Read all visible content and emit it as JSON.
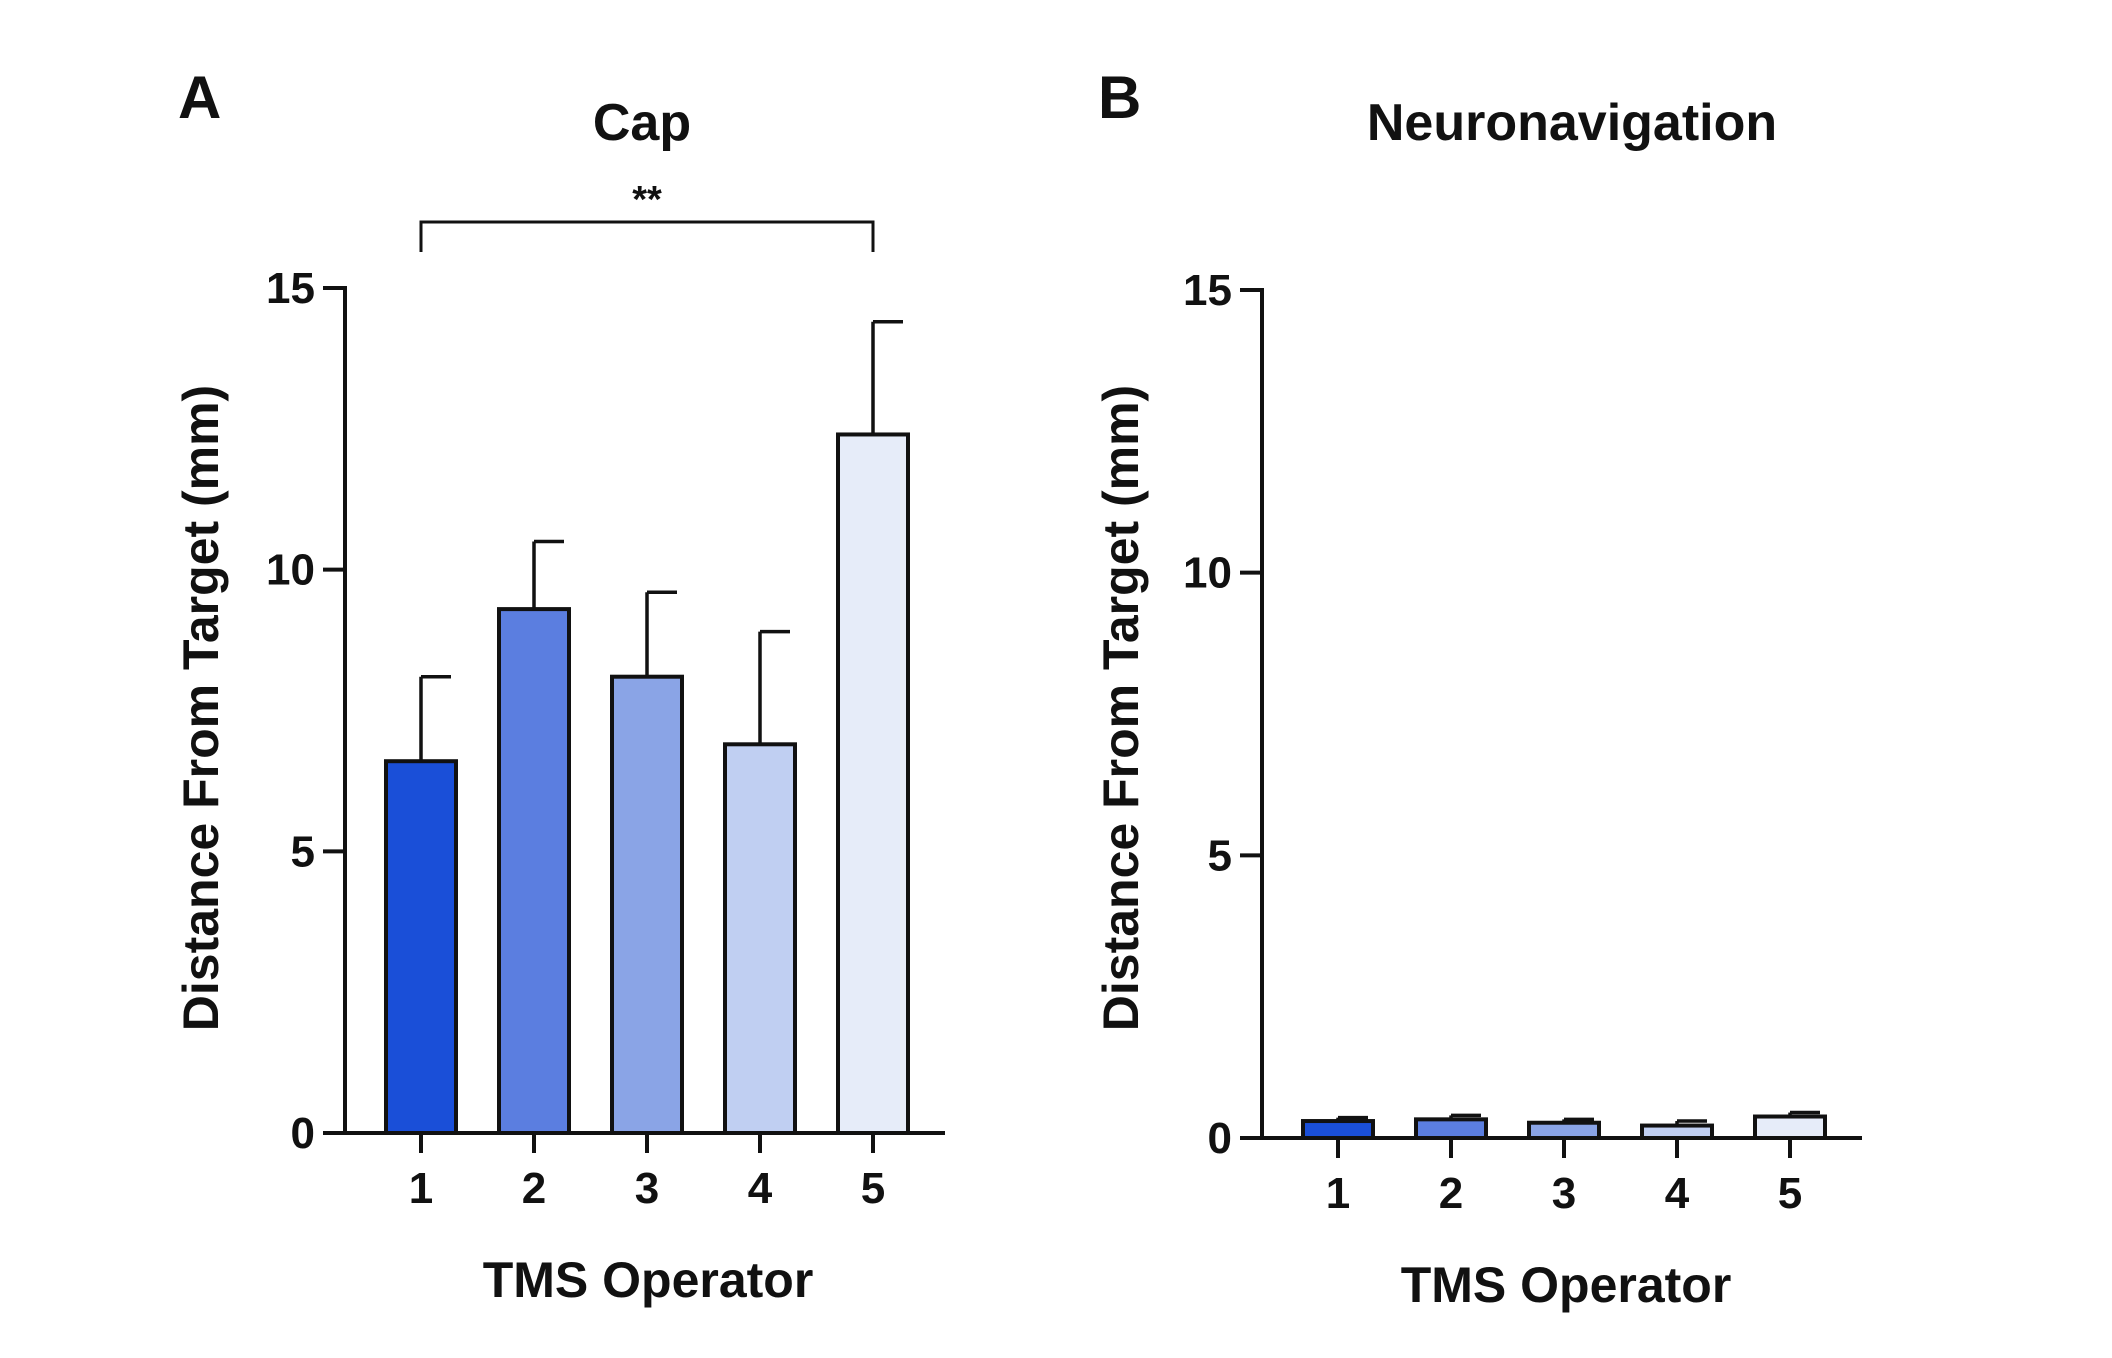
{
  "chart_data": [
    {
      "type": "bar",
      "panel": "A",
      "title": "Cap",
      "xlabel": "TMS Operator",
      "ylabel": "Distance From Target (mm)",
      "categories": [
        "1",
        "2",
        "3",
        "4",
        "5"
      ],
      "values": [
        6.6,
        9.3,
        8.1,
        6.9,
        12.4
      ],
      "error_upper": [
        8.1,
        10.5,
        9.6,
        8.9,
        14.4
      ],
      "colors": [
        "#1a4fd8",
        "#5b7ee0",
        "#8aa4e6",
        "#c0cff2",
        "#e6ecf9"
      ],
      "ylim": [
        0,
        15
      ],
      "yticks": [
        0,
        5,
        10,
        15
      ],
      "grid": false,
      "annotations": [
        {
          "label": "**",
          "from": "1",
          "to": "5"
        }
      ]
    },
    {
      "type": "bar",
      "panel": "B",
      "title": "Neuronavigation",
      "xlabel": "TMS Operator",
      "ylabel": "Distance From Target (mm)",
      "categories": [
        "1",
        "2",
        "3",
        "4",
        "5"
      ],
      "values": [
        0.3,
        0.33,
        0.27,
        0.22,
        0.38
      ],
      "error_upper": [
        0.36,
        0.4,
        0.33,
        0.3,
        0.45
      ],
      "colors": [
        "#1a4fd8",
        "#5b7ee0",
        "#8aa4e6",
        "#c0cff2",
        "#e6ecf9"
      ],
      "ylim": [
        0,
        15
      ],
      "yticks": [
        0,
        5,
        10,
        15
      ],
      "grid": false,
      "annotations": []
    }
  ]
}
